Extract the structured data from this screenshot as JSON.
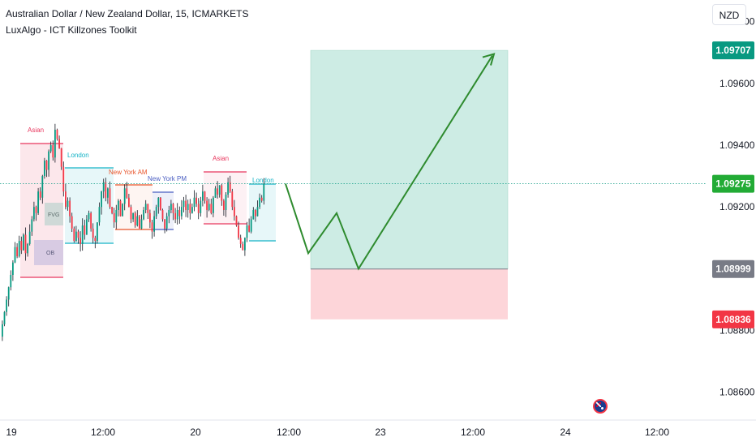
{
  "header": {
    "title": "Australian Dollar / New Zealand Dollar, 15, ICMARKETS",
    "indicator": "LuxAlgo - ICT Killzones Toolkit"
  },
  "currency_button": "NZD",
  "colors": {
    "up_candle": "#089981",
    "down_candle": "#f23645",
    "candle_wick": "#131722",
    "projection_arrow": "#2e8b2e",
    "profit_zone": "#cdece4",
    "loss_zone": "#fdd5d9",
    "asian_session": "#e8365d",
    "london_session": "#15b3c6",
    "newyork_am_session": "#e8542a",
    "newyork_pm_session": "#4a5ec2"
  },
  "chart_data": {
    "type": "candlestick",
    "symbol": "AUDNZD",
    "x_tick_labels": [
      "19",
      "12:00",
      "20",
      "12:00",
      "23",
      "12:00",
      "24",
      "12:00"
    ],
    "y_tick_labels": [
      "1.09800",
      "1.09600",
      "1.09400",
      "1.09200",
      "1.09000",
      "1.08800",
      "1.08600"
    ],
    "y_range": [
      1.0851,
      1.0987
    ],
    "price_labels": [
      {
        "text": "1.09707",
        "value": 1.09707,
        "color": "#089981"
      },
      {
        "text": "1.09275",
        "value": 1.09275,
        "color": "#22ab35"
      },
      {
        "text": "1.08999",
        "value": 1.08999,
        "color": "#787b86"
      },
      {
        "text": "1.08836",
        "value": 1.08836,
        "color": "#f23645"
      }
    ],
    "position_tool": {
      "target": 1.09707,
      "entry": 1.08999,
      "stop": 1.08836
    },
    "session_labels": [
      {
        "text": "Asian",
        "color": "#e8365d"
      },
      {
        "text": "London",
        "color": "#15b3c6"
      },
      {
        "text": "New York AM",
        "color": "#e8542a"
      },
      {
        "text": "New York PM",
        "color": "#4a5ec2"
      },
      {
        "text": "Asian",
        "color": "#e8365d"
      },
      {
        "text": "London",
        "color": "#15b3c6"
      }
    ],
    "zone_labels": [
      "FVG",
      "OB"
    ],
    "projection_path": [
      1.09275,
      1.0905,
      1.0918,
      1.09,
      1.0969
    ],
    "candles_closes": [
      1.0882,
      1.0886,
      1.089,
      1.0894,
      1.0898,
      1.0902,
      1.0907,
      1.0904,
      1.0909,
      1.0906,
      1.0911,
      1.0905,
      1.0908,
      1.0912,
      1.0916,
      1.092,
      1.0918,
      1.0925,
      1.0923,
      1.093,
      1.0935,
      1.0932,
      1.0938,
      1.094,
      1.0936,
      1.0945,
      1.0942,
      1.0939,
      1.0933,
      1.0925,
      1.092,
      1.0922,
      1.0917,
      1.0913,
      1.0909,
      1.0912,
      1.091,
      1.0908,
      1.0914,
      1.0911,
      1.0916,
      1.0918,
      1.0913,
      1.091,
      1.0909,
      1.0915,
      1.092,
      1.0925,
      1.0928,
      1.0923,
      1.0926,
      1.092,
      1.0918,
      1.0915,
      1.0919,
      1.0922,
      1.0917,
      1.0921,
      1.0926,
      1.0923,
      1.092,
      1.0916,
      1.0918,
      1.0914,
      1.0917,
      1.0913,
      1.0916,
      1.0919,
      1.0921,
      1.0918,
      1.0915,
      1.0912,
      1.0917,
      1.092,
      1.0923,
      1.0919,
      1.0916,
      1.0913,
      1.0917,
      1.0919,
      1.0921,
      1.0918,
      1.0916,
      1.0919,
      1.0917,
      1.092,
      1.0922,
      1.0919,
      1.0921,
      1.0918,
      1.092,
      1.0923,
      1.0921,
      1.0918,
      1.0922,
      1.0925,
      1.0922,
      1.0919,
      1.0921,
      1.0918,
      1.0923,
      1.0926,
      1.0924,
      1.0927,
      1.0922,
      1.0919,
      1.0924,
      1.0928,
      1.0925,
      1.092,
      1.0917,
      1.0914,
      1.091,
      1.0908,
      1.0906,
      1.091,
      1.0914,
      1.0912,
      1.0916,
      1.0919,
      1.0917,
      1.092,
      1.0923,
      1.0922,
      1.09275
    ]
  }
}
